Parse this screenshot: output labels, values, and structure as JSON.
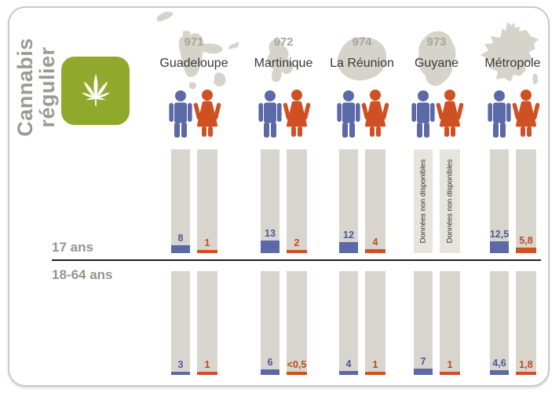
{
  "title": {
    "line1": "Cannabis",
    "line2": "régulier"
  },
  "colors": {
    "male_fill": "#5b69a6",
    "female_fill": "#cf5023",
    "male_text": "#4a5a9b",
    "female_text": "#c04a1e",
    "bar_bg": "#d8d5ce",
    "bar_bg_nodata": "#e6e4dd",
    "map_gray": "#d6d3ca",
    "title_text": "#9c9a91",
    "row_label_text": "#96938a",
    "region_code_text": "#a8a59b",
    "region_name_text": "#3a3a3a",
    "tile_green": "#90a92c"
  },
  "icons": {
    "tile": "cannabis-leaf-icon",
    "male": "male-figure-icon",
    "female": "female-figure-icon"
  },
  "rows": [
    {
      "label": "17 ans",
      "key": "teen"
    },
    {
      "label": "18-64 ans",
      "key": "adult"
    }
  ],
  "no_data_label": "Données non disponibles",
  "regions": [
    {
      "code": "971",
      "name": "Guadeloupe",
      "teen": {
        "male": "8",
        "female": "1",
        "male_value": 8,
        "female_value": 1
      },
      "adult": {
        "male": "3",
        "female": "1",
        "male_value": 3,
        "female_value": 1
      }
    },
    {
      "code": "972",
      "name": "Martinique",
      "teen": {
        "male": "13",
        "female": "2",
        "male_value": 13,
        "female_value": 2
      },
      "adult": {
        "male": "6",
        "female": "<0,5",
        "male_value": 6,
        "female_value": 0.5
      }
    },
    {
      "code": "974",
      "name": "La Réunion",
      "teen": {
        "male": "12",
        "female": "4",
        "male_value": 12,
        "female_value": 4
      },
      "adult": {
        "male": "4",
        "female": "1",
        "male_value": 4,
        "female_value": 1
      }
    },
    {
      "code": "973",
      "name": "Guyane",
      "teen": {
        "no_data": true
      },
      "adult": {
        "male": "7",
        "female": "1",
        "male_value": 7,
        "female_value": 1
      }
    },
    {
      "code": "",
      "name": "Métropole",
      "teen": {
        "male": "12,5",
        "female": "5,8",
        "male_value": 12.5,
        "female_value": 5.8
      },
      "adult": {
        "male": "4,6",
        "female": "1,8",
        "male_value": 4.6,
        "female_value": 1.8
      }
    }
  ],
  "chart_data": {
    "type": "bar",
    "title": "Cannabis régulier",
    "categories": [
      "Guadeloupe",
      "Martinique",
      "La Réunion",
      "Guyane",
      "Métropole"
    ],
    "category_codes": [
      "971",
      "972",
      "974",
      "973",
      ""
    ],
    "groups": [
      {
        "age": "17 ans",
        "series": [
          {
            "name": "Hommes",
            "values": [
              8,
              13,
              12,
              null,
              12.5
            ]
          },
          {
            "name": "Femmes",
            "values": [
              1,
              2,
              4,
              null,
              5.8
            ]
          }
        ],
        "note": "Guyane : Données non disponibles"
      },
      {
        "age": "18-64 ans",
        "series": [
          {
            "name": "Hommes",
            "values": [
              3,
              6,
              4,
              7,
              4.6
            ]
          },
          {
            "name": "Femmes",
            "values": [
              1,
              0.5,
              1,
              1,
              1.8
            ]
          }
        ],
        "displayed_labels": [
          "3;1",
          "6;<0,5",
          "4;1",
          "7;1",
          "4,6;1,8"
        ]
      }
    ],
    "legend": [
      "Hommes (bleu)",
      "Femmes (orange)"
    ],
    "grid": false
  }
}
